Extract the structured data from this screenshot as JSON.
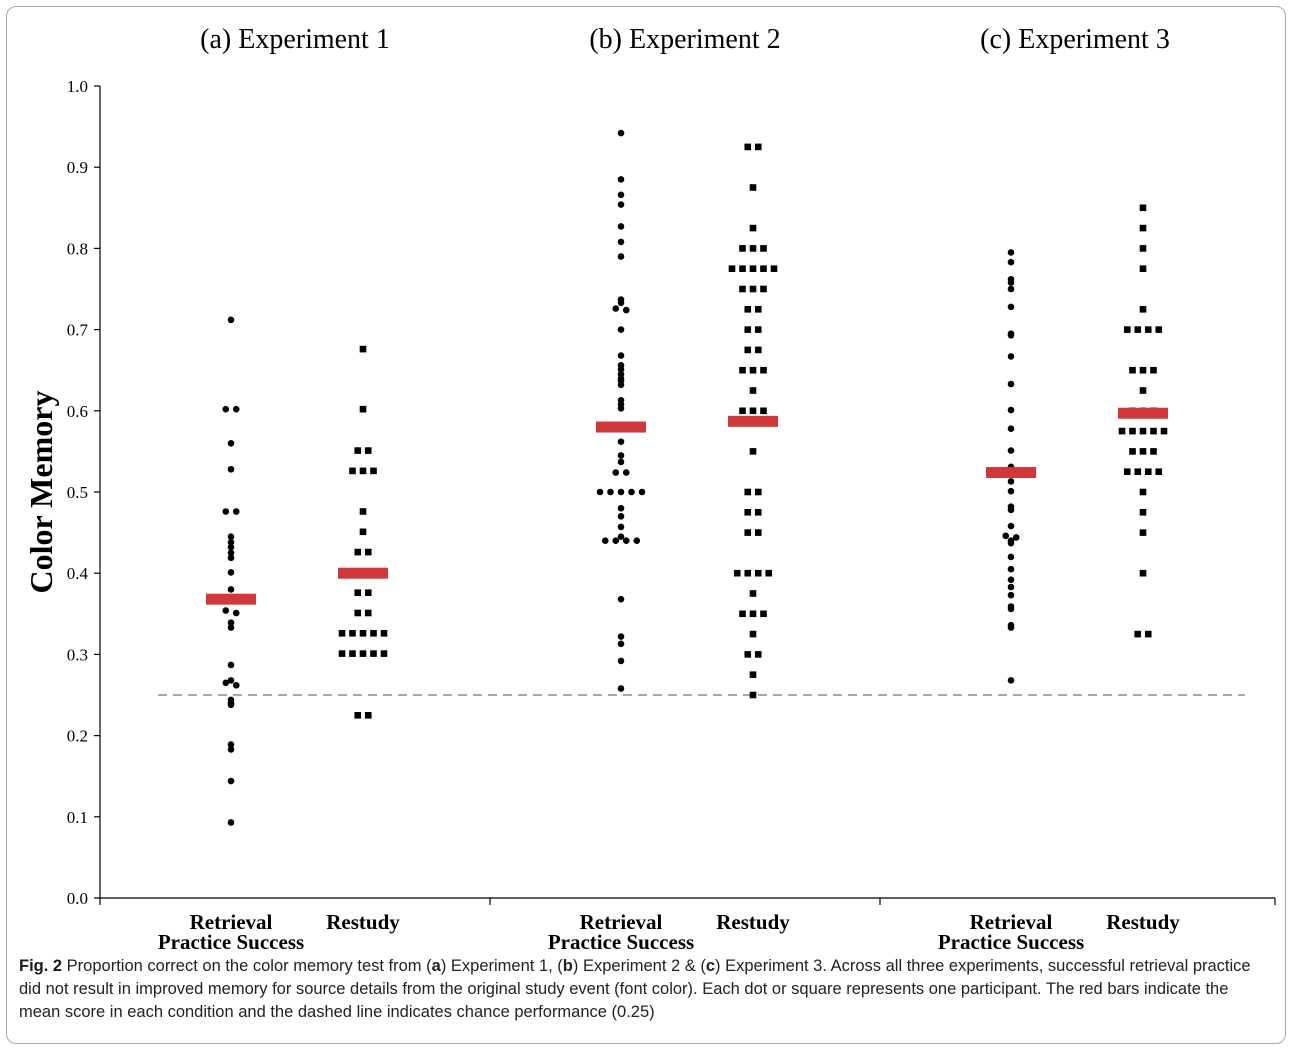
{
  "chart_data": {
    "type": "scatter",
    "ylabel": "Color Memory",
    "xlabel": "",
    "ylim": [
      0.0,
      1.0
    ],
    "yticks": [
      "0.0",
      "0.1",
      "0.2",
      "0.3",
      "0.4",
      "0.5",
      "0.6",
      "0.7",
      "0.8",
      "0.9",
      "1.0"
    ],
    "grid": false,
    "chance_line": 0.25,
    "mean_bar_color": "#d0393b",
    "point_color": "#000000",
    "chance_line_color": "#8a8a8a",
    "panels": [
      {
        "title": "(a) Experiment 1",
        "conditions": [
          {
            "label_line1": "Retrieval",
            "label_line2": "Practice Success",
            "marker": "circle",
            "mean": 0.368,
            "values": [
              0.712,
              0.602,
              0.602,
              0.56,
              0.528,
              0.476,
              0.476,
              0.445,
              0.438,
              0.432,
              0.425,
              0.419,
              0.401,
              0.38,
              0.354,
              0.351,
              0.339,
              0.333,
              0.287,
              0.268,
              0.265,
              0.262,
              0.244,
              0.24,
              0.238,
              0.189,
              0.183,
              0.144,
              0.093
            ]
          },
          {
            "label_line1": "Restudy",
            "label_line2": "",
            "marker": "square",
            "mean": 0.4,
            "values": [
              0.676,
              0.602,
              0.551,
              0.551,
              0.526,
              0.526,
              0.526,
              0.476,
              0.451,
              0.426,
              0.426,
              0.401,
              0.401,
              0.401,
              0.401,
              0.376,
              0.376,
              0.351,
              0.351,
              0.326,
              0.326,
              0.326,
              0.326,
              0.326,
              0.301,
              0.301,
              0.301,
              0.301,
              0.301,
              0.225,
              0.225
            ]
          }
        ]
      },
      {
        "title": "(b) Experiment 2",
        "conditions": [
          {
            "label_line1": "Retrieval",
            "label_line2": "Practice Success",
            "marker": "circle",
            "mean": 0.58,
            "values": [
              0.942,
              0.885,
              0.866,
              0.854,
              0.827,
              0.808,
              0.79,
              0.737,
              0.733,
              0.726,
              0.724,
              0.7,
              0.668,
              0.656,
              0.651,
              0.645,
              0.64,
              0.637,
              0.632,
              0.613,
              0.608,
              0.603,
              0.562,
              0.545,
              0.537,
              0.524,
              0.524,
              0.5,
              0.5,
              0.5,
              0.5,
              0.5,
              0.48,
              0.47,
              0.457,
              0.445,
              0.44,
              0.44,
              0.44,
              0.44,
              0.368,
              0.322,
              0.313,
              0.292,
              0.258
            ]
          },
          {
            "label_line1": "Restudy",
            "label_line2": "",
            "marker": "square",
            "mean": 0.587,
            "values": [
              0.925,
              0.925,
              0.875,
              0.825,
              0.8,
              0.8,
              0.8,
              0.775,
              0.775,
              0.775,
              0.775,
              0.775,
              0.75,
              0.75,
              0.75,
              0.725,
              0.725,
              0.7,
              0.7,
              0.675,
              0.675,
              0.65,
              0.65,
              0.65,
              0.625,
              0.6,
              0.6,
              0.6,
              0.55,
              0.5,
              0.5,
              0.475,
              0.475,
              0.45,
              0.45,
              0.4,
              0.4,
              0.4,
              0.4,
              0.375,
              0.35,
              0.35,
              0.35,
              0.325,
              0.3,
              0.3,
              0.275,
              0.25
            ]
          }
        ]
      },
      {
        "title": "(c) Experiment 3",
        "conditions": [
          {
            "label_line1": "Retrieval",
            "label_line2": "Practice Success",
            "marker": "circle",
            "mean": 0.524,
            "values": [
              0.795,
              0.783,
              0.762,
              0.758,
              0.75,
              0.728,
              0.695,
              0.693,
              0.667,
              0.633,
              0.601,
              0.578,
              0.551,
              0.531,
              0.513,
              0.501,
              0.482,
              0.478,
              0.458,
              0.446,
              0.444,
              0.44,
              0.437,
              0.42,
              0.405,
              0.392,
              0.383,
              0.373,
              0.359,
              0.356,
              0.336,
              0.333,
              0.268
            ]
          },
          {
            "label_line1": "Restudy",
            "label_line2": "",
            "marker": "square",
            "mean": 0.597,
            "values": [
              0.85,
              0.825,
              0.8,
              0.775,
              0.725,
              0.7,
              0.7,
              0.7,
              0.7,
              0.65,
              0.65,
              0.65,
              0.625,
              0.6,
              0.6,
              0.6,
              0.575,
              0.575,
              0.575,
              0.575,
              0.575,
              0.55,
              0.55,
              0.55,
              0.525,
              0.525,
              0.525,
              0.525,
              0.5,
              0.475,
              0.45,
              0.4,
              0.325,
              0.325
            ]
          }
        ]
      }
    ]
  },
  "caption": {
    "fig_label": "Fig. 2",
    "t1": " Proportion correct on the color memory test from (",
    "a": "a",
    "t2": ") Experiment 1, (",
    "b": "b",
    "t3": ") Experiment 2 & (",
    "c": "c",
    "t4": ") Experiment 3. Across all three experiments, successful retrieval practice did not result in improved memory for source details from the original study event (font color). Each dot or square represents one participant. The red bars indicate the mean score in each condition and the dashed line indicates chance performance (0.25)"
  }
}
